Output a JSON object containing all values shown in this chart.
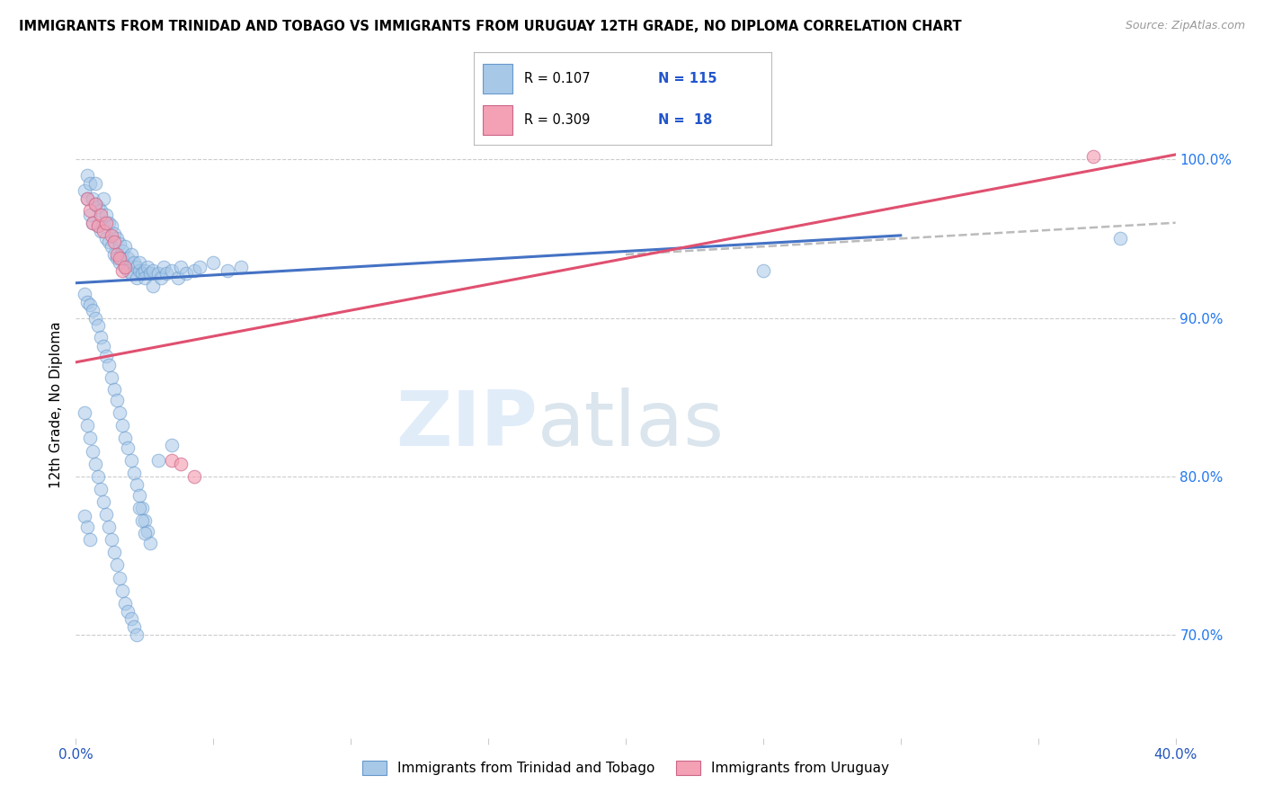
{
  "title": "IMMIGRANTS FROM TRINIDAD AND TOBAGO VS IMMIGRANTS FROM URUGUAY 12TH GRADE, NO DIPLOMA CORRELATION CHART",
  "source": "Source: ZipAtlas.com",
  "ylabel": "12th Grade, No Diploma",
  "ylabel_right_ticks": [
    "70.0%",
    "80.0%",
    "90.0%",
    "100.0%"
  ],
  "ylabel_right_values": [
    0.7,
    0.8,
    0.9,
    1.0
  ],
  "legend_blue_R": "0.107",
  "legend_blue_N": "115",
  "legend_pink_R": "0.309",
  "legend_pink_N": "18",
  "blue_color": "#a8c8e8",
  "pink_color": "#f4a0b5",
  "blue_edge_color": "#6699cc",
  "pink_edge_color": "#cc6688",
  "blue_line_color": "#4472c4",
  "pink_line_color": "#e05070",
  "dashed_line_color": "#bbbbbb",
  "watermark_zip": "ZIP",
  "watermark_atlas": "atlas",
  "x_min": 0.0,
  "x_max": 0.4,
  "y_min": 0.635,
  "y_max": 1.055,
  "blue_line_x0": 0.0,
  "blue_line_x1": 0.3,
  "blue_line_y0": 0.922,
  "blue_line_y1": 0.952,
  "pink_line_x0": 0.0,
  "pink_line_x1": 0.4,
  "pink_line_y0": 0.872,
  "pink_line_y1": 1.003,
  "dashed_line_x0": 0.2,
  "dashed_line_x1": 0.4,
  "dashed_line_y0": 0.94,
  "dashed_line_y1": 0.96,
  "blue_scatter_x": [
    0.003,
    0.004,
    0.004,
    0.005,
    0.005,
    0.006,
    0.006,
    0.007,
    0.007,
    0.008,
    0.008,
    0.009,
    0.009,
    0.01,
    0.01,
    0.011,
    0.011,
    0.012,
    0.012,
    0.013,
    0.013,
    0.014,
    0.014,
    0.015,
    0.015,
    0.016,
    0.016,
    0.017,
    0.017,
    0.018,
    0.018,
    0.019,
    0.019,
    0.02,
    0.02,
    0.021,
    0.022,
    0.022,
    0.023,
    0.023,
    0.024,
    0.025,
    0.025,
    0.026,
    0.027,
    0.028,
    0.028,
    0.03,
    0.031,
    0.032,
    0.033,
    0.035,
    0.037,
    0.038,
    0.04,
    0.043,
    0.045,
    0.05,
    0.055,
    0.06,
    0.003,
    0.004,
    0.005,
    0.006,
    0.007,
    0.008,
    0.009,
    0.01,
    0.011,
    0.012,
    0.013,
    0.014,
    0.015,
    0.016,
    0.017,
    0.018,
    0.019,
    0.02,
    0.021,
    0.022,
    0.023,
    0.024,
    0.025,
    0.026,
    0.027,
    0.003,
    0.004,
    0.005,
    0.006,
    0.007,
    0.008,
    0.009,
    0.01,
    0.011,
    0.012,
    0.013,
    0.014,
    0.015,
    0.016,
    0.017,
    0.018,
    0.019,
    0.02,
    0.021,
    0.022,
    0.023,
    0.024,
    0.025,
    0.03,
    0.035,
    0.003,
    0.004,
    0.005,
    0.25,
    0.38
  ],
  "blue_scatter_y": [
    0.98,
    0.99,
    0.975,
    0.985,
    0.965,
    0.975,
    0.96,
    0.985,
    0.972,
    0.97,
    0.958,
    0.968,
    0.955,
    0.975,
    0.96,
    0.965,
    0.95,
    0.96,
    0.948,
    0.958,
    0.945,
    0.953,
    0.94,
    0.95,
    0.938,
    0.947,
    0.935,
    0.942,
    0.938,
    0.945,
    0.932,
    0.938,
    0.93,
    0.94,
    0.928,
    0.935,
    0.932,
    0.925,
    0.93,
    0.935,
    0.928,
    0.93,
    0.925,
    0.932,
    0.928,
    0.93,
    0.92,
    0.928,
    0.925,
    0.932,
    0.928,
    0.93,
    0.925,
    0.932,
    0.928,
    0.93,
    0.932,
    0.935,
    0.93,
    0.932,
    0.915,
    0.91,
    0.908,
    0.905,
    0.9,
    0.895,
    0.888,
    0.882,
    0.876,
    0.87,
    0.862,
    0.855,
    0.848,
    0.84,
    0.832,
    0.824,
    0.818,
    0.81,
    0.802,
    0.795,
    0.788,
    0.78,
    0.772,
    0.765,
    0.758,
    0.84,
    0.832,
    0.824,
    0.816,
    0.808,
    0.8,
    0.792,
    0.784,
    0.776,
    0.768,
    0.76,
    0.752,
    0.744,
    0.736,
    0.728,
    0.72,
    0.715,
    0.71,
    0.705,
    0.7,
    0.78,
    0.772,
    0.764,
    0.81,
    0.82,
    0.775,
    0.768,
    0.76,
    0.93,
    0.95
  ],
  "pink_scatter_x": [
    0.004,
    0.005,
    0.006,
    0.007,
    0.008,
    0.009,
    0.01,
    0.011,
    0.013,
    0.014,
    0.015,
    0.016,
    0.017,
    0.018,
    0.035,
    0.038,
    0.043,
    0.37
  ],
  "pink_scatter_y": [
    0.975,
    0.968,
    0.96,
    0.972,
    0.958,
    0.965,
    0.955,
    0.96,
    0.952,
    0.948,
    0.94,
    0.938,
    0.93,
    0.932,
    0.81,
    0.808,
    0.8,
    1.002
  ]
}
